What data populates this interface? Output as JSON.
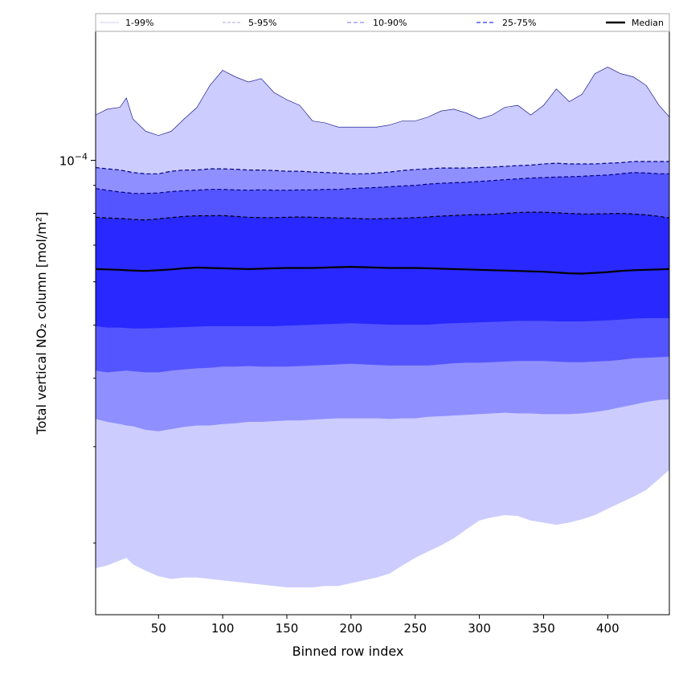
{
  "chart_data": {
    "type": "area",
    "xlabel": "Binned row index",
    "ylabel": "Total vertical NO₂ column [mol/m²]",
    "y_scale": "log",
    "xlim": [
      1,
      448
    ],
    "ylim": [
      1.48e-05,
      0.000172
    ],
    "x_ticks": [
      50,
      100,
      150,
      200,
      250,
      300,
      350,
      400
    ],
    "x_tick_labels": [
      "50",
      "100",
      "150",
      "200",
      "250",
      "300",
      "350",
      "400"
    ],
    "y_major_tick": 0.0001,
    "y_major_tick_label": "10−4",
    "y_minor_ticks": [
      2e-05,
      3e-05,
      4e-05,
      5e-05,
      6e-05,
      7e-05,
      8e-05,
      9e-05
    ],
    "grid": false,
    "legend_position": "top",
    "x": [
      1,
      10,
      20,
      25,
      30,
      40,
      50,
      60,
      70,
      80,
      90,
      100,
      110,
      120,
      130,
      140,
      150,
      160,
      170,
      180,
      190,
      200,
      210,
      220,
      230,
      240,
      250,
      260,
      270,
      280,
      290,
      300,
      310,
      320,
      330,
      340,
      350,
      360,
      370,
      380,
      390,
      400,
      410,
      420,
      430,
      440,
      448
    ],
    "series": [
      {
        "name": "1-99%",
        "line_style": "solid",
        "line_color": "#000080",
        "fill_color": "#ccccff",
        "upper": [
          0.000121,
          0.000124,
          0.000125,
          0.00013,
          0.000119,
          0.000113,
          0.000111,
          0.000113,
          0.000119,
          0.000125,
          0.000137,
          0.000146,
          0.000142,
          0.000139,
          0.000141,
          0.000133,
          0.000129,
          0.000126,
          0.000118,
          0.000117,
          0.000115,
          0.000115,
          0.000115,
          0.000115,
          0.000116,
          0.000118,
          0.000118,
          0.00012,
          0.000123,
          0.000124,
          0.000122,
          0.000119,
          0.000121,
          0.000125,
          0.000126,
          0.000121,
          0.000126,
          0.000135,
          0.000128,
          0.000132,
          0.000144,
          0.000148,
          0.000144,
          0.000142,
          0.000137,
          0.000126,
          0.00012
        ],
        "lower": [
          1.8e-05,
          1.82e-05,
          1.86e-05,
          1.88e-05,
          1.83e-05,
          1.78e-05,
          1.74e-05,
          1.72e-05,
          1.73e-05,
          1.73e-05,
          1.72e-05,
          1.71e-05,
          1.7e-05,
          1.69e-05,
          1.68e-05,
          1.67e-05,
          1.66e-05,
          1.66e-05,
          1.66e-05,
          1.67e-05,
          1.67e-05,
          1.69e-05,
          1.71e-05,
          1.73e-05,
          1.76e-05,
          1.82e-05,
          1.88e-05,
          1.93e-05,
          1.98e-05,
          2.04e-05,
          2.12e-05,
          2.2e-05,
          2.23e-05,
          2.25e-05,
          2.24e-05,
          2.2e-05,
          2.18e-05,
          2.16e-05,
          2.18e-05,
          2.21e-05,
          2.25e-05,
          2.31e-05,
          2.37e-05,
          2.43e-05,
          2.5e-05,
          2.62e-05,
          2.72e-05
        ]
      },
      {
        "name": "5-95%",
        "line_style": "dashed",
        "line_color": "#000080",
        "fill_color": "#8f8fff",
        "upper": [
          9.7e-05,
          9.65e-05,
          9.6e-05,
          9.55e-05,
          9.5e-05,
          9.45e-05,
          9.45e-05,
          9.55e-05,
          9.6e-05,
          9.6e-05,
          9.65e-05,
          9.65e-05,
          9.63e-05,
          9.6e-05,
          9.6e-05,
          9.58e-05,
          9.55e-05,
          9.55e-05,
          9.52e-05,
          9.5e-05,
          9.48e-05,
          9.45e-05,
          9.45e-05,
          9.48e-05,
          9.52e-05,
          9.58e-05,
          9.62e-05,
          9.65e-05,
          9.68e-05,
          9.68e-05,
          9.68e-05,
          9.7e-05,
          9.72e-05,
          9.75e-05,
          9.78e-05,
          9.8e-05,
          9.85e-05,
          9.88e-05,
          9.85e-05,
          9.85e-05,
          9.85e-05,
          9.88e-05,
          9.9e-05,
          9.95e-05,
          9.95e-05,
          9.95e-05,
          9.95e-05
        ],
        "lower": [
          3.37e-05,
          3.33e-05,
          3.3e-05,
          3.28e-05,
          3.27e-05,
          3.22e-05,
          3.2e-05,
          3.23e-05,
          3.26e-05,
          3.28e-05,
          3.28e-05,
          3.3e-05,
          3.31e-05,
          3.33e-05,
          3.33e-05,
          3.34e-05,
          3.35e-05,
          3.35e-05,
          3.36e-05,
          3.37e-05,
          3.38e-05,
          3.38e-05,
          3.38e-05,
          3.38e-05,
          3.37e-05,
          3.38e-05,
          3.38e-05,
          3.4e-05,
          3.41e-05,
          3.42e-05,
          3.43e-05,
          3.44e-05,
          3.45e-05,
          3.46e-05,
          3.45e-05,
          3.45e-05,
          3.44e-05,
          3.44e-05,
          3.44e-05,
          3.45e-05,
          3.47e-05,
          3.5e-05,
          3.54e-05,
          3.58e-05,
          3.62e-05,
          3.65e-05,
          3.66e-05
        ]
      },
      {
        "name": "10-90%",
        "line_style": "dashed",
        "line_color": "#000080",
        "fill_color": "#5555ff",
        "upper": [
          8.88e-05,
          8.82e-05,
          8.75e-05,
          8.73e-05,
          8.7e-05,
          8.7e-05,
          8.72e-05,
          8.77e-05,
          8.8e-05,
          8.82e-05,
          8.85e-05,
          8.85e-05,
          8.83e-05,
          8.82e-05,
          8.83e-05,
          8.82e-05,
          8.82e-05,
          8.83e-05,
          8.83e-05,
          8.85e-05,
          8.85e-05,
          8.88e-05,
          8.9e-05,
          8.92e-05,
          8.95e-05,
          8.98e-05,
          9e-05,
          9.05e-05,
          9.08e-05,
          9.1e-05,
          9.12e-05,
          9.15e-05,
          9.18e-05,
          9.22e-05,
          9.25e-05,
          9.28e-05,
          9.3e-05,
          9.32e-05,
          9.33e-05,
          9.35e-05,
          9.38e-05,
          9.4e-05,
          9.45e-05,
          9.5e-05,
          9.48e-05,
          9.45e-05,
          9.45e-05
        ],
        "lower": [
          4.13e-05,
          4.1e-05,
          4.12e-05,
          4.13e-05,
          4.12e-05,
          4.1e-05,
          4.1e-05,
          4.13e-05,
          4.15e-05,
          4.17e-05,
          4.18e-05,
          4.2e-05,
          4.2e-05,
          4.21e-05,
          4.2e-05,
          4.2e-05,
          4.2e-05,
          4.21e-05,
          4.22e-05,
          4.23e-05,
          4.24e-05,
          4.25e-05,
          4.24e-05,
          4.23e-05,
          4.22e-05,
          4.22e-05,
          4.22e-05,
          4.22e-05,
          4.24e-05,
          4.26e-05,
          4.27e-05,
          4.27e-05,
          4.28e-05,
          4.29e-05,
          4.3e-05,
          4.3e-05,
          4.3e-05,
          4.29e-05,
          4.28e-05,
          4.28e-05,
          4.29e-05,
          4.3e-05,
          4.32e-05,
          4.35e-05,
          4.36e-05,
          4.37e-05,
          4.38e-05
        ]
      },
      {
        "name": "25-75%",
        "line_style": "dashed",
        "line_color": "#000000",
        "fill_color": "#2828ff",
        "upper": [
          7.87e-05,
          7.85e-05,
          7.83e-05,
          7.82e-05,
          7.8e-05,
          7.78e-05,
          7.82e-05,
          7.86e-05,
          7.9e-05,
          7.92e-05,
          7.92e-05,
          7.93e-05,
          7.9e-05,
          7.87e-05,
          7.86e-05,
          7.86e-05,
          7.87e-05,
          7.88e-05,
          7.87e-05,
          7.86e-05,
          7.85e-05,
          7.84e-05,
          7.82e-05,
          7.82e-05,
          7.83e-05,
          7.84e-05,
          7.86e-05,
          7.88e-05,
          7.91e-05,
          7.93e-05,
          7.95e-05,
          7.96e-05,
          7.97e-05,
          8e-05,
          8.03e-05,
          8.04e-05,
          8.04e-05,
          8.02e-05,
          8e-05,
          7.98e-05,
          7.98e-05,
          7.99e-05,
          8e-05,
          7.98e-05,
          7.95e-05,
          7.9e-05,
          7.85e-05
        ],
        "lower": [
          4.98e-05,
          4.95e-05,
          4.95e-05,
          4.94e-05,
          4.93e-05,
          4.93e-05,
          4.94e-05,
          4.95e-05,
          4.96e-05,
          4.97e-05,
          4.98e-05,
          4.98e-05,
          4.98e-05,
          4.98e-05,
          4.98e-05,
          4.98e-05,
          4.99e-05,
          5e-05,
          5.01e-05,
          5.02e-05,
          5.03e-05,
          5.04e-05,
          5.03e-05,
          5.02e-05,
          5.01e-05,
          5.01e-05,
          5.01e-05,
          5.01e-05,
          5.03e-05,
          5.04e-05,
          5.05e-05,
          5.06e-05,
          5.07e-05,
          5.08e-05,
          5.09e-05,
          5.09e-05,
          5.09e-05,
          5.08e-05,
          5.08e-05,
          5.08e-05,
          5.09e-05,
          5.1e-05,
          5.12e-05,
          5.14e-05,
          5.15e-05,
          5.15e-05,
          5.15e-05
        ]
      },
      {
        "name": "Median",
        "line_style": "solid",
        "line_color": "#000000",
        "values": [
          6.33e-05,
          6.32e-05,
          6.31e-05,
          6.3e-05,
          6.29e-05,
          6.28e-05,
          6.3e-05,
          6.32e-05,
          6.35e-05,
          6.37e-05,
          6.36e-05,
          6.35e-05,
          6.34e-05,
          6.33e-05,
          6.34e-05,
          6.35e-05,
          6.36e-05,
          6.36e-05,
          6.36e-05,
          6.37e-05,
          6.38e-05,
          6.39e-05,
          6.38e-05,
          6.37e-05,
          6.36e-05,
          6.36e-05,
          6.36e-05,
          6.35e-05,
          6.34e-05,
          6.33e-05,
          6.32e-05,
          6.31e-05,
          6.3e-05,
          6.29e-05,
          6.28e-05,
          6.27e-05,
          6.26e-05,
          6.24e-05,
          6.22e-05,
          6.21e-05,
          6.23e-05,
          6.25e-05,
          6.28e-05,
          6.3e-05,
          6.31e-05,
          6.32e-05,
          6.33e-05
        ]
      }
    ]
  }
}
